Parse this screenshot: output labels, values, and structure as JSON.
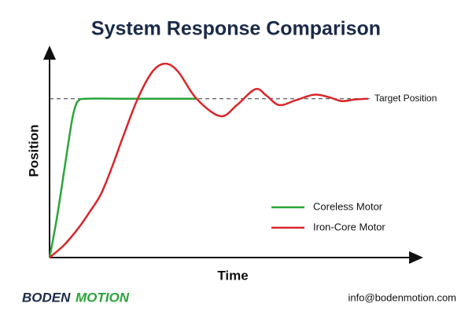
{
  "chart_data": {
    "type": "line",
    "title": "System Response Comparison",
    "x_label": "Time",
    "y_label": "Position",
    "xlim": [
      0,
      100
    ],
    "ylim": [
      0,
      1.3
    ],
    "legend": "lower right",
    "annotations": [
      {
        "text": "Target Position",
        "y": 1
      }
    ],
    "series": [
      {
        "name": "Coreless Motor",
        "color": "#2aa53a",
        "x": [
          0,
          2,
          4,
          6,
          7,
          8,
          10,
          20,
          30,
          40
        ],
        "values": [
          0,
          0.25,
          0.55,
          0.85,
          0.95,
          0.99,
          1,
          1,
          1,
          1
        ]
      },
      {
        "name": "Iron-Core Motor",
        "color": "#d9262a",
        "x": [
          0,
          4,
          8,
          11,
          14,
          17,
          20,
          24,
          28,
          31.5,
          35,
          40,
          46.5,
          51,
          56,
          59,
          62.5,
          67,
          72,
          76,
          79.5,
          83,
          86.7
        ],
        "values": [
          0,
          0.08,
          0.19,
          0.29,
          0.4,
          0.57,
          0.76,
          1.0,
          1.17,
          1.22,
          1.17,
          1.0,
          0.89,
          0.96,
          1.06,
          1.02,
          0.96,
          0.99,
          1.025,
          1.01,
          0.985,
          0.995,
          1.0
        ]
      }
    ]
  },
  "footer": {
    "logo_part1": "BODEN",
    "logo_part2": "MOTION",
    "email": "info@bodenmotion.com"
  }
}
